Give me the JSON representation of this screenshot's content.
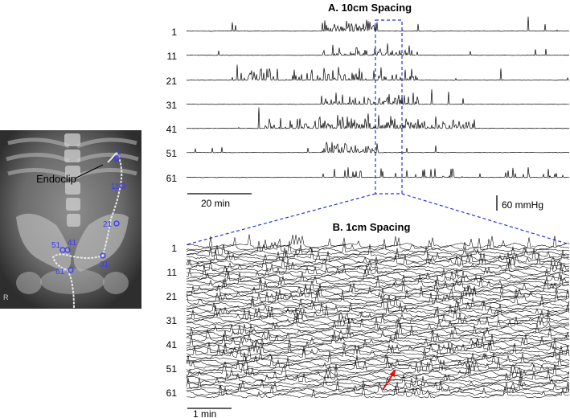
{
  "panel_a": {
    "title": "A. 10cm Spacing",
    "channel_labels": [
      "1",
      "11",
      "21",
      "31",
      "41",
      "51",
      "61"
    ],
    "time_scale": "20 min",
    "pressure_scale": "60 mmHg"
  },
  "panel_b": {
    "title": "B. 1cm Spacing",
    "channel_labels": [
      "1",
      "11",
      "21",
      "31",
      "41",
      "51",
      "61"
    ],
    "time_scale": "1 min"
  },
  "xray": {
    "annotation": "Endoclip",
    "marker_labels": [
      "1",
      "11",
      "21",
      "51",
      "41",
      "31",
      "61"
    ],
    "corner_mark": "R",
    "marker_color": "#3a3aff"
  },
  "colors": {
    "trace": "#000000",
    "zoom_box": "#2233dd",
    "arrow": "#e01010"
  }
}
